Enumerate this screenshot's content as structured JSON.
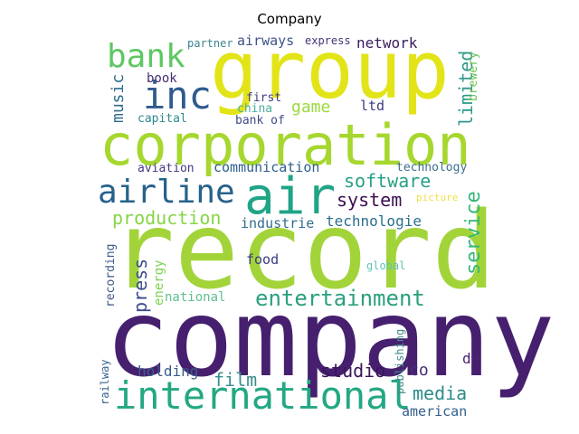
{
  "title": "Company",
  "words": [
    {
      "text": "company",
      "color": "#46206e",
      "vertical": false
    },
    {
      "text": "record",
      "color": "#a2d43a",
      "vertical": false
    },
    {
      "text": "corporation",
      "color": "#a6d72f",
      "vertical": false
    },
    {
      "text": "group",
      "color": "#e2e418",
      "vertical": false
    },
    {
      "text": "air",
      "color": "#20a486",
      "vertical": false
    },
    {
      "text": "international",
      "color": "#23a883",
      "vertical": false
    },
    {
      "text": "airline",
      "color": "#26628b",
      "vertical": false
    },
    {
      "text": "inc",
      "color": "#2f5b8d",
      "vertical": false
    },
    {
      "text": "bank",
      "color": "#5ec762",
      "vertical": false
    },
    {
      "text": "entertainment",
      "color": "#2ba07f",
      "vertical": false
    },
    {
      "text": "production",
      "color": "#86d546",
      "vertical": false
    },
    {
      "text": "software",
      "color": "#279f85",
      "vertical": false
    },
    {
      "text": "system",
      "color": "#3c0e52",
      "vertical": false
    },
    {
      "text": "studio",
      "color": "#3c1559",
      "vertical": false
    },
    {
      "text": "film",
      "color": "#3a8c8c",
      "vertical": false
    },
    {
      "text": "media",
      "color": "#2c8b8a",
      "vertical": false
    },
    {
      "text": "service",
      "color": "#34b779",
      "vertical": true
    },
    {
      "text": "limited",
      "color": "#2d9a89",
      "vertical": true
    },
    {
      "text": "technologie",
      "color": "#2b6f8e",
      "vertical": false
    },
    {
      "text": "press",
      "color": "#3c4c8a",
      "vertical": true
    },
    {
      "text": "music",
      "color": "#2f6d8e",
      "vertical": true
    },
    {
      "text": "game",
      "color": "#9bd93c",
      "vertical": false
    },
    {
      "text": "holding",
      "color": "#3a5b8c",
      "vertical": false
    },
    {
      "text": "network",
      "color": "#3a1c5d",
      "vertical": false
    },
    {
      "text": "airways",
      "color": "#3f5389",
      "vertical": false
    },
    {
      "text": "industrie",
      "color": "#326d8e",
      "vertical": false
    },
    {
      "text": "communication",
      "color": "#2e5e8c",
      "vertical": false
    },
    {
      "text": "national",
      "color": "#5fbf90",
      "vertical": false
    },
    {
      "text": "energy",
      "color": "#7ad151",
      "vertical": true
    },
    {
      "text": "american",
      "color": "#34608d",
      "vertical": false
    },
    {
      "text": "food",
      "color": "#3b3a7d",
      "vertical": false
    },
    {
      "text": "recording",
      "color": "#3d5a8a",
      "vertical": true
    },
    {
      "text": "co",
      "color": "#462c79",
      "vertical": false
    },
    {
      "text": "de",
      "color": "#4b2271",
      "vertical": false
    },
    {
      "text": "ltd",
      "color": "#3d3b84",
      "vertical": false
    },
    {
      "text": "book",
      "color": "#442c6f",
      "vertical": false
    },
    {
      "text": "brewery",
      "color": "#6cc45b",
      "vertical": true
    },
    {
      "text": "technology",
      "color": "#3d6e8e",
      "vertical": false
    },
    {
      "text": "aviation",
      "color": "#443983",
      "vertical": false
    },
    {
      "text": "capital",
      "color": "#2e8a8d",
      "vertical": false
    },
    {
      "text": "bank of",
      "color": "#3e4a89",
      "vertical": false
    },
    {
      "text": "first",
      "color": "#3e3c86",
      "vertical": false
    },
    {
      "text": "china",
      "color": "#4cae9e",
      "vertical": false
    },
    {
      "text": "partner",
      "color": "#3a838d",
      "vertical": false
    },
    {
      "text": "express",
      "color": "#463277",
      "vertical": false
    },
    {
      "text": "global",
      "color": "#5fc3b5",
      "vertical": false
    },
    {
      "text": "picture",
      "color": "#f0e146",
      "vertical": false
    },
    {
      "text": "publishing",
      "color": "#408b8c",
      "vertical": true
    },
    {
      "text": "railway",
      "color": "#3a6390",
      "vertical": true
    }
  ]
}
